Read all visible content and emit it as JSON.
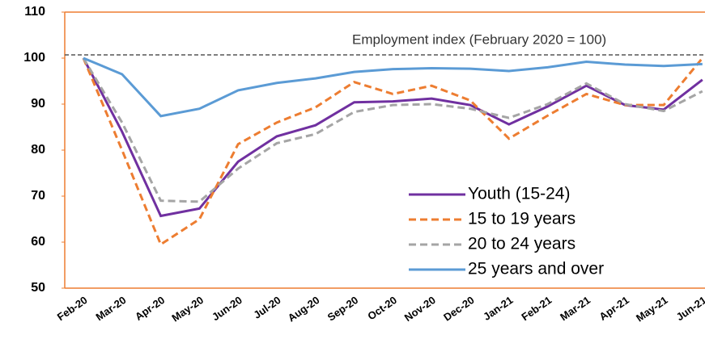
{
  "chart_data": {
    "type": "line",
    "annotation": "Employment index (February 2020 = 100)",
    "reference_line": 100,
    "categories": [
      "Feb-20",
      "Mar-20",
      "Apr-20",
      "May-20",
      "Jun-20",
      "Jul-20",
      "Aug-20",
      "Sep-20",
      "Oct-20",
      "Nov-20",
      "Dec-20",
      "Jan-21",
      "Feb-21",
      "Mar-21",
      "Apr-21",
      "May-21",
      "Jun-21"
    ],
    "series": [
      {
        "name": "Youth (15-24)",
        "color": "#7030a0",
        "dash": false,
        "values": [
          100,
          84,
          65.7,
          67.3,
          77.5,
          83,
          85.4,
          90.4,
          90.6,
          91.2,
          89.8,
          85.6,
          89.5,
          94,
          89.8,
          88.8,
          95.3
        ]
      },
      {
        "name": "15 to 19 years",
        "color": "#ed7d31",
        "dash": true,
        "values": [
          100,
          80,
          59.5,
          65,
          81.3,
          86,
          89.3,
          94.8,
          92.2,
          94,
          90.8,
          82.5,
          87.5,
          92.2,
          89.8,
          89.8,
          100
        ]
      },
      {
        "name": "20 to 24 years",
        "color": "#a5a5a5",
        "dash": true,
        "values": [
          100,
          86,
          69,
          68.8,
          76,
          81.5,
          83.5,
          88.3,
          89.8,
          90,
          89,
          87,
          90,
          94.5,
          90,
          88.5,
          92.8
        ]
      },
      {
        "name": "25 years and over",
        "color": "#5b9bd5",
        "dash": false,
        "values": [
          100,
          96.5,
          87.4,
          89,
          93,
          94.6,
          95.6,
          97,
          97.6,
          97.8,
          97.7,
          97.2,
          98,
          99.2,
          98.6,
          98.3,
          98.7
        ]
      }
    ],
    "ylim": [
      50,
      110
    ],
    "yticks": [
      50,
      60,
      70,
      80,
      90,
      100,
      110
    ],
    "grid": false
  }
}
